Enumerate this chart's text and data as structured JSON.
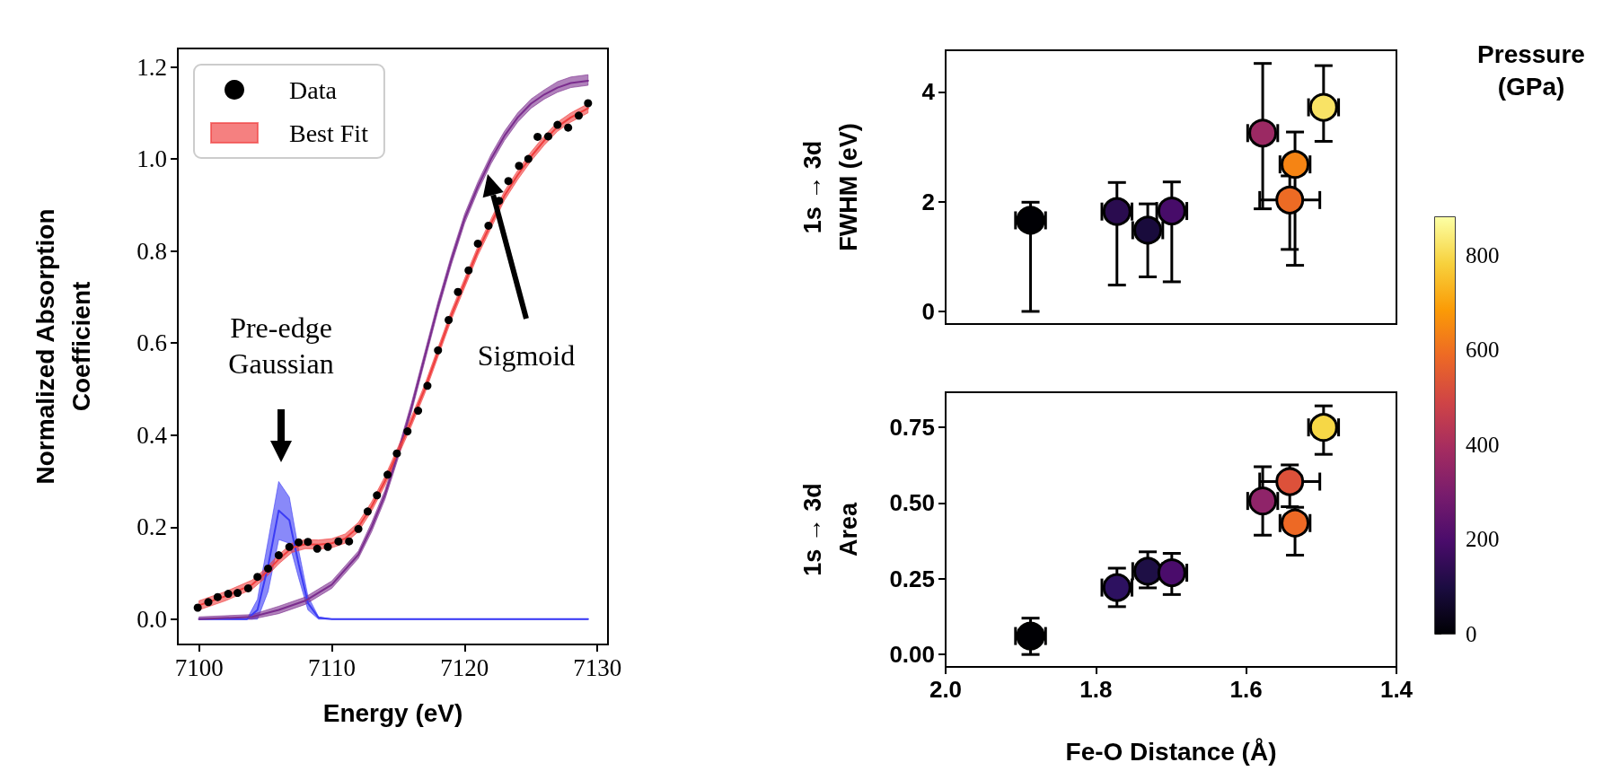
{
  "chart_data": [
    {
      "type": "line",
      "xlabel": "Energy (eV)",
      "ylabel": "Normalized Absorption\nCoefficient",
      "xlim": [
        7098.4,
        7130.8
      ],
      "xticks": [
        7100,
        7110,
        7120,
        7130
      ],
      "ylim": [
        -0.055,
        1.24
      ],
      "yticks": [
        {
          "value": 0,
          "label": "0.0"
        },
        {
          "value": 0.2,
          "label": "0.2"
        },
        {
          "value": 0.4,
          "label": "0.4"
        },
        {
          "value": 0.6,
          "label": "0.6"
        },
        {
          "value": 0.8,
          "label": "0.8"
        },
        {
          "value": 1,
          "label": "1.0"
        },
        {
          "value": 1.2,
          "label": "1.2"
        }
      ],
      "legend": "top left",
      "annotations": [
        "Pre-edge\nGaussian",
        "Sigmoid"
      ],
      "series": [
        {
          "name": "Data",
          "type": "scatter",
          "color": "#000000",
          "marker": "circle",
          "x": [
            7099.9,
            7100.7,
            7101.4,
            7102.2,
            7102.9,
            7103.7,
            7104.4,
            7105.2,
            7106,
            7106.8,
            7107.5,
            7108.2,
            7108.9,
            7109.7,
            7110.5,
            7111.3,
            7112,
            7112.7,
            7113.4,
            7114.2,
            7114.9,
            7115.7,
            7116.5,
            7117.2,
            7118,
            7118.8,
            7119.5,
            7120.3,
            7121,
            7121.8,
            7122.6,
            7123.3,
            7124.1,
            7124.8,
            7125.5,
            7126.3,
            7127,
            7127.8,
            7128.6,
            7129.3
          ],
          "values": [
            0.025,
            0.037,
            0.048,
            0.055,
            0.057,
            0.067,
            0.092,
            0.11,
            0.139,
            0.157,
            0.167,
            0.168,
            0.153,
            0.157,
            0.169,
            0.169,
            0.196,
            0.234,
            0.269,
            0.314,
            0.36,
            0.408,
            0.453,
            0.507,
            0.584,
            0.65,
            0.711,
            0.758,
            0.816,
            0.855,
            0.909,
            0.952,
            0.985,
            1,
            1.048,
            1.049,
            1.074,
            1.068,
            1.094,
            1.121
          ]
        },
        {
          "type": "line",
          "color": "#3b3bf5",
          "marker": "none",
          "x": [
            7100,
            7103,
            7103.6,
            7104.4,
            7105.2,
            7106,
            7106.8,
            7107.5,
            7108.2,
            7109,
            7110,
            7129.3
          ],
          "values": [
            0,
            0,
            0,
            0.02,
            0.115,
            0.236,
            0.215,
            0.12,
            0.035,
            0.003,
            0,
            0
          ],
          "lower": [
            0,
            0,
            0,
            0,
            0.06,
            0.173,
            0.165,
            0.09,
            0.02,
            0,
            0,
            0
          ],
          "upper": [
            0,
            0,
            0,
            0.043,
            0.17,
            0.299,
            0.265,
            0.15,
            0.05,
            0.005,
            0,
            0
          ]
        },
        {
          "type": "line",
          "color": "#7b2d8e",
          "marker": "none",
          "x": [
            7100,
            7104,
            7106,
            7108,
            7110,
            7112,
            7113,
            7114,
            7115,
            7116,
            7117,
            7118,
            7119,
            7120,
            7121,
            7122,
            7123,
            7124,
            7125,
            7126,
            7127,
            7128,
            7129.3
          ],
          "values": [
            0,
            0.005,
            0.02,
            0.04,
            0.075,
            0.14,
            0.2,
            0.27,
            0.36,
            0.46,
            0.57,
            0.68,
            0.78,
            0.87,
            0.94,
            1,
            1.05,
            1.09,
            1.12,
            1.14,
            1.155,
            1.165,
            1.17
          ],
          "lower": [
            0,
            0,
            0.012,
            0.032,
            0.067,
            0.132,
            0.19,
            0.26,
            0.35,
            0.45,
            0.56,
            0.67,
            0.77,
            0.86,
            0.93,
            0.99,
            1.04,
            1.08,
            1.11,
            1.13,
            1.145,
            1.155,
            1.16
          ],
          "upper": [
            0.005,
            0.01,
            0.028,
            0.048,
            0.083,
            0.148,
            0.21,
            0.28,
            0.37,
            0.47,
            0.58,
            0.69,
            0.79,
            0.88,
            0.95,
            1.01,
            1.06,
            1.1,
            1.13,
            1.15,
            1.168,
            1.178,
            1.183
          ]
        },
        {
          "name": "Best Fit",
          "type": "line",
          "color": "#f03c3c",
          "marker": "none",
          "x": [
            7100,
            7102,
            7104,
            7105,
            7106,
            7107,
            7108,
            7109,
            7110,
            7111,
            7112,
            7113,
            7114,
            7115,
            7116,
            7117,
            7118,
            7119,
            7120,
            7121,
            7122,
            7123,
            7124,
            7125,
            7126,
            7127,
            7128,
            7129.3
          ],
          "values": [
            0.03,
            0.05,
            0.075,
            0.1,
            0.13,
            0.155,
            0.163,
            0.162,
            0.165,
            0.175,
            0.2,
            0.245,
            0.3,
            0.365,
            0.43,
            0.5,
            0.58,
            0.66,
            0.73,
            0.8,
            0.86,
            0.92,
            0.965,
            1.005,
            1.04,
            1.07,
            1.09,
            1.11
          ],
          "lower": [
            0.02,
            0.04,
            0.065,
            0.09,
            0.12,
            0.145,
            0.153,
            0.152,
            0.155,
            0.165,
            0.19,
            0.235,
            0.29,
            0.355,
            0.42,
            0.49,
            0.57,
            0.65,
            0.72,
            0.79,
            0.85,
            0.91,
            0.955,
            0.995,
            1.03,
            1.06,
            1.08,
            1.1
          ],
          "upper": [
            0.04,
            0.06,
            0.085,
            0.11,
            0.14,
            0.165,
            0.173,
            0.172,
            0.175,
            0.185,
            0.21,
            0.255,
            0.31,
            0.375,
            0.44,
            0.51,
            0.59,
            0.67,
            0.74,
            0.81,
            0.87,
            0.93,
            0.975,
            1.015,
            1.05,
            1.08,
            1.1,
            1.12
          ]
        }
      ]
    },
    {
      "type": "scatter",
      "ylabel": "1s → 3d\nFWHM (eV)",
      "xlim": [
        2.0,
        1.4
      ],
      "ylim": [
        -0.23,
        4.76
      ],
      "yticks": [
        0,
        2,
        4
      ],
      "tick_labels": "y",
      "marker": "circle",
      "clabel": "Pressure\n(GPa)",
      "clim": [
        0,
        880
      ],
      "cticks": [
        0,
        200,
        400,
        600,
        800
      ],
      "x": [
        1.887,
        1.772,
        1.731,
        1.699,
        1.578,
        1.535,
        1.542,
        1.497
      ],
      "values": [
        1.66,
        1.82,
        1.48,
        1.83,
        3.25,
        2.68,
        2.03,
        3.72
      ],
      "errors": [
        [
          0,
          1.99
        ],
        [
          0.48,
          2.35
        ],
        [
          0.63,
          1.96
        ],
        [
          0.54,
          2.36
        ],
        [
          1.87,
          4.52
        ],
        [
          0.84,
          3.27
        ],
        [
          1.13,
          2.47
        ],
        [
          3.1,
          4.48
        ]
      ],
      "xerrors": [
        0.02,
        0.02,
        0.02,
        0.02,
        0.02,
        0.02,
        0.04,
        0.02
      ],
      "cvalues": [
        0,
        130,
        90,
        190,
        370,
        640,
        590,
        820
      ]
    },
    {
      "type": "scatter",
      "ylabel": "1s → 3d\nArea",
      "xlabel": "Fe-O Distance (Å)",
      "xlim": [
        2.0,
        1.4
      ],
      "xticks": [
        {
          "value": 2,
          "label": "2.0"
        },
        {
          "value": 1.8,
          "label": "1.8"
        },
        {
          "value": 1.6,
          "label": "1.6"
        },
        {
          "value": 1.4,
          "label": "1.4"
        }
      ],
      "ylim": [
        -0.041,
        0.866
      ],
      "yticks": [
        {
          "value": 0,
          "label": "0.00"
        },
        {
          "value": 0.25,
          "label": "0.25"
        },
        {
          "value": 0.5,
          "label": "0.50"
        },
        {
          "value": 0.75,
          "label": "0.75"
        }
      ],
      "marker": "circle",
      "x": [
        1.887,
        1.772,
        1.731,
        1.699,
        1.578,
        1.535,
        1.542,
        1.497
      ],
      "values": [
        0.061,
        0.221,
        0.275,
        0.27,
        0.507,
        0.434,
        0.571,
        0.75
      ],
      "errors": [
        [
          0,
          0.12
        ],
        [
          0.158,
          0.285
        ],
        [
          0.22,
          0.339
        ],
        [
          0.198,
          0.334
        ],
        [
          0.394,
          0.62
        ],
        [
          0.328,
          0.486
        ],
        [
          0.488,
          0.626
        ],
        [
          0.661,
          0.821
        ]
      ],
      "xerrors": [
        0.02,
        0.02,
        0.02,
        0.02,
        0.02,
        0.02,
        0.04,
        0.02
      ],
      "colors": [
        "#000004",
        "#2d1160",
        "#1e0f45",
        "#4a0c6b",
        "#8f2469",
        "#ed6925",
        "#dd513a",
        "#f6d746"
      ]
    }
  ]
}
